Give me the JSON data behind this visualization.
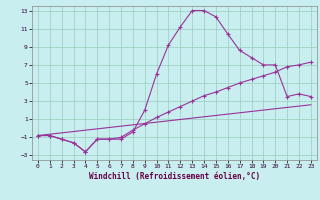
{
  "title": "",
  "xlabel": "Windchill (Refroidissement éolien,°C)",
  "background_color": "#c8eef0",
  "grid_color": "#99ccbb",
  "line_color": "#993399",
  "xlim": [
    -0.5,
    23.5
  ],
  "ylim": [
    -3.5,
    13.5
  ],
  "xticks": [
    0,
    1,
    2,
    3,
    4,
    5,
    6,
    7,
    8,
    9,
    10,
    11,
    12,
    13,
    14,
    15,
    16,
    17,
    18,
    19,
    20,
    21,
    22,
    23
  ],
  "yticks": [
    -3,
    -1,
    1,
    3,
    5,
    7,
    9,
    11,
    13
  ],
  "line1_x": [
    0,
    1,
    2,
    3,
    4,
    5,
    6,
    7,
    8,
    9,
    10,
    11,
    12,
    13,
    14,
    15,
    16,
    17,
    18,
    19,
    20,
    21,
    22,
    23
  ],
  "line1_y": [
    -0.8,
    -0.8,
    -1.2,
    -1.6,
    -2.6,
    -1.2,
    -1.2,
    -1.2,
    -0.4,
    2.0,
    6.0,
    9.2,
    11.2,
    13.0,
    13.0,
    12.3,
    10.4,
    8.6,
    7.8,
    7.0,
    7.0,
    3.5,
    3.8,
    3.5
  ],
  "line2_x": [
    0,
    1,
    2,
    3,
    4,
    5,
    6,
    7,
    8,
    9,
    10,
    11,
    12,
    13,
    14,
    15,
    16,
    17,
    18,
    19,
    20,
    21,
    22,
    23
  ],
  "line2_y": [
    -0.8,
    -0.8,
    -1.2,
    -1.6,
    -2.6,
    -1.2,
    -1.2,
    -1.0,
    -0.2,
    0.5,
    1.2,
    1.8,
    2.4,
    3.0,
    3.6,
    4.0,
    4.5,
    5.0,
    5.4,
    5.8,
    6.2,
    6.8,
    7.0,
    7.3
  ],
  "line3_x": [
    0,
    23
  ],
  "line3_y": [
    -0.8,
    2.6
  ]
}
